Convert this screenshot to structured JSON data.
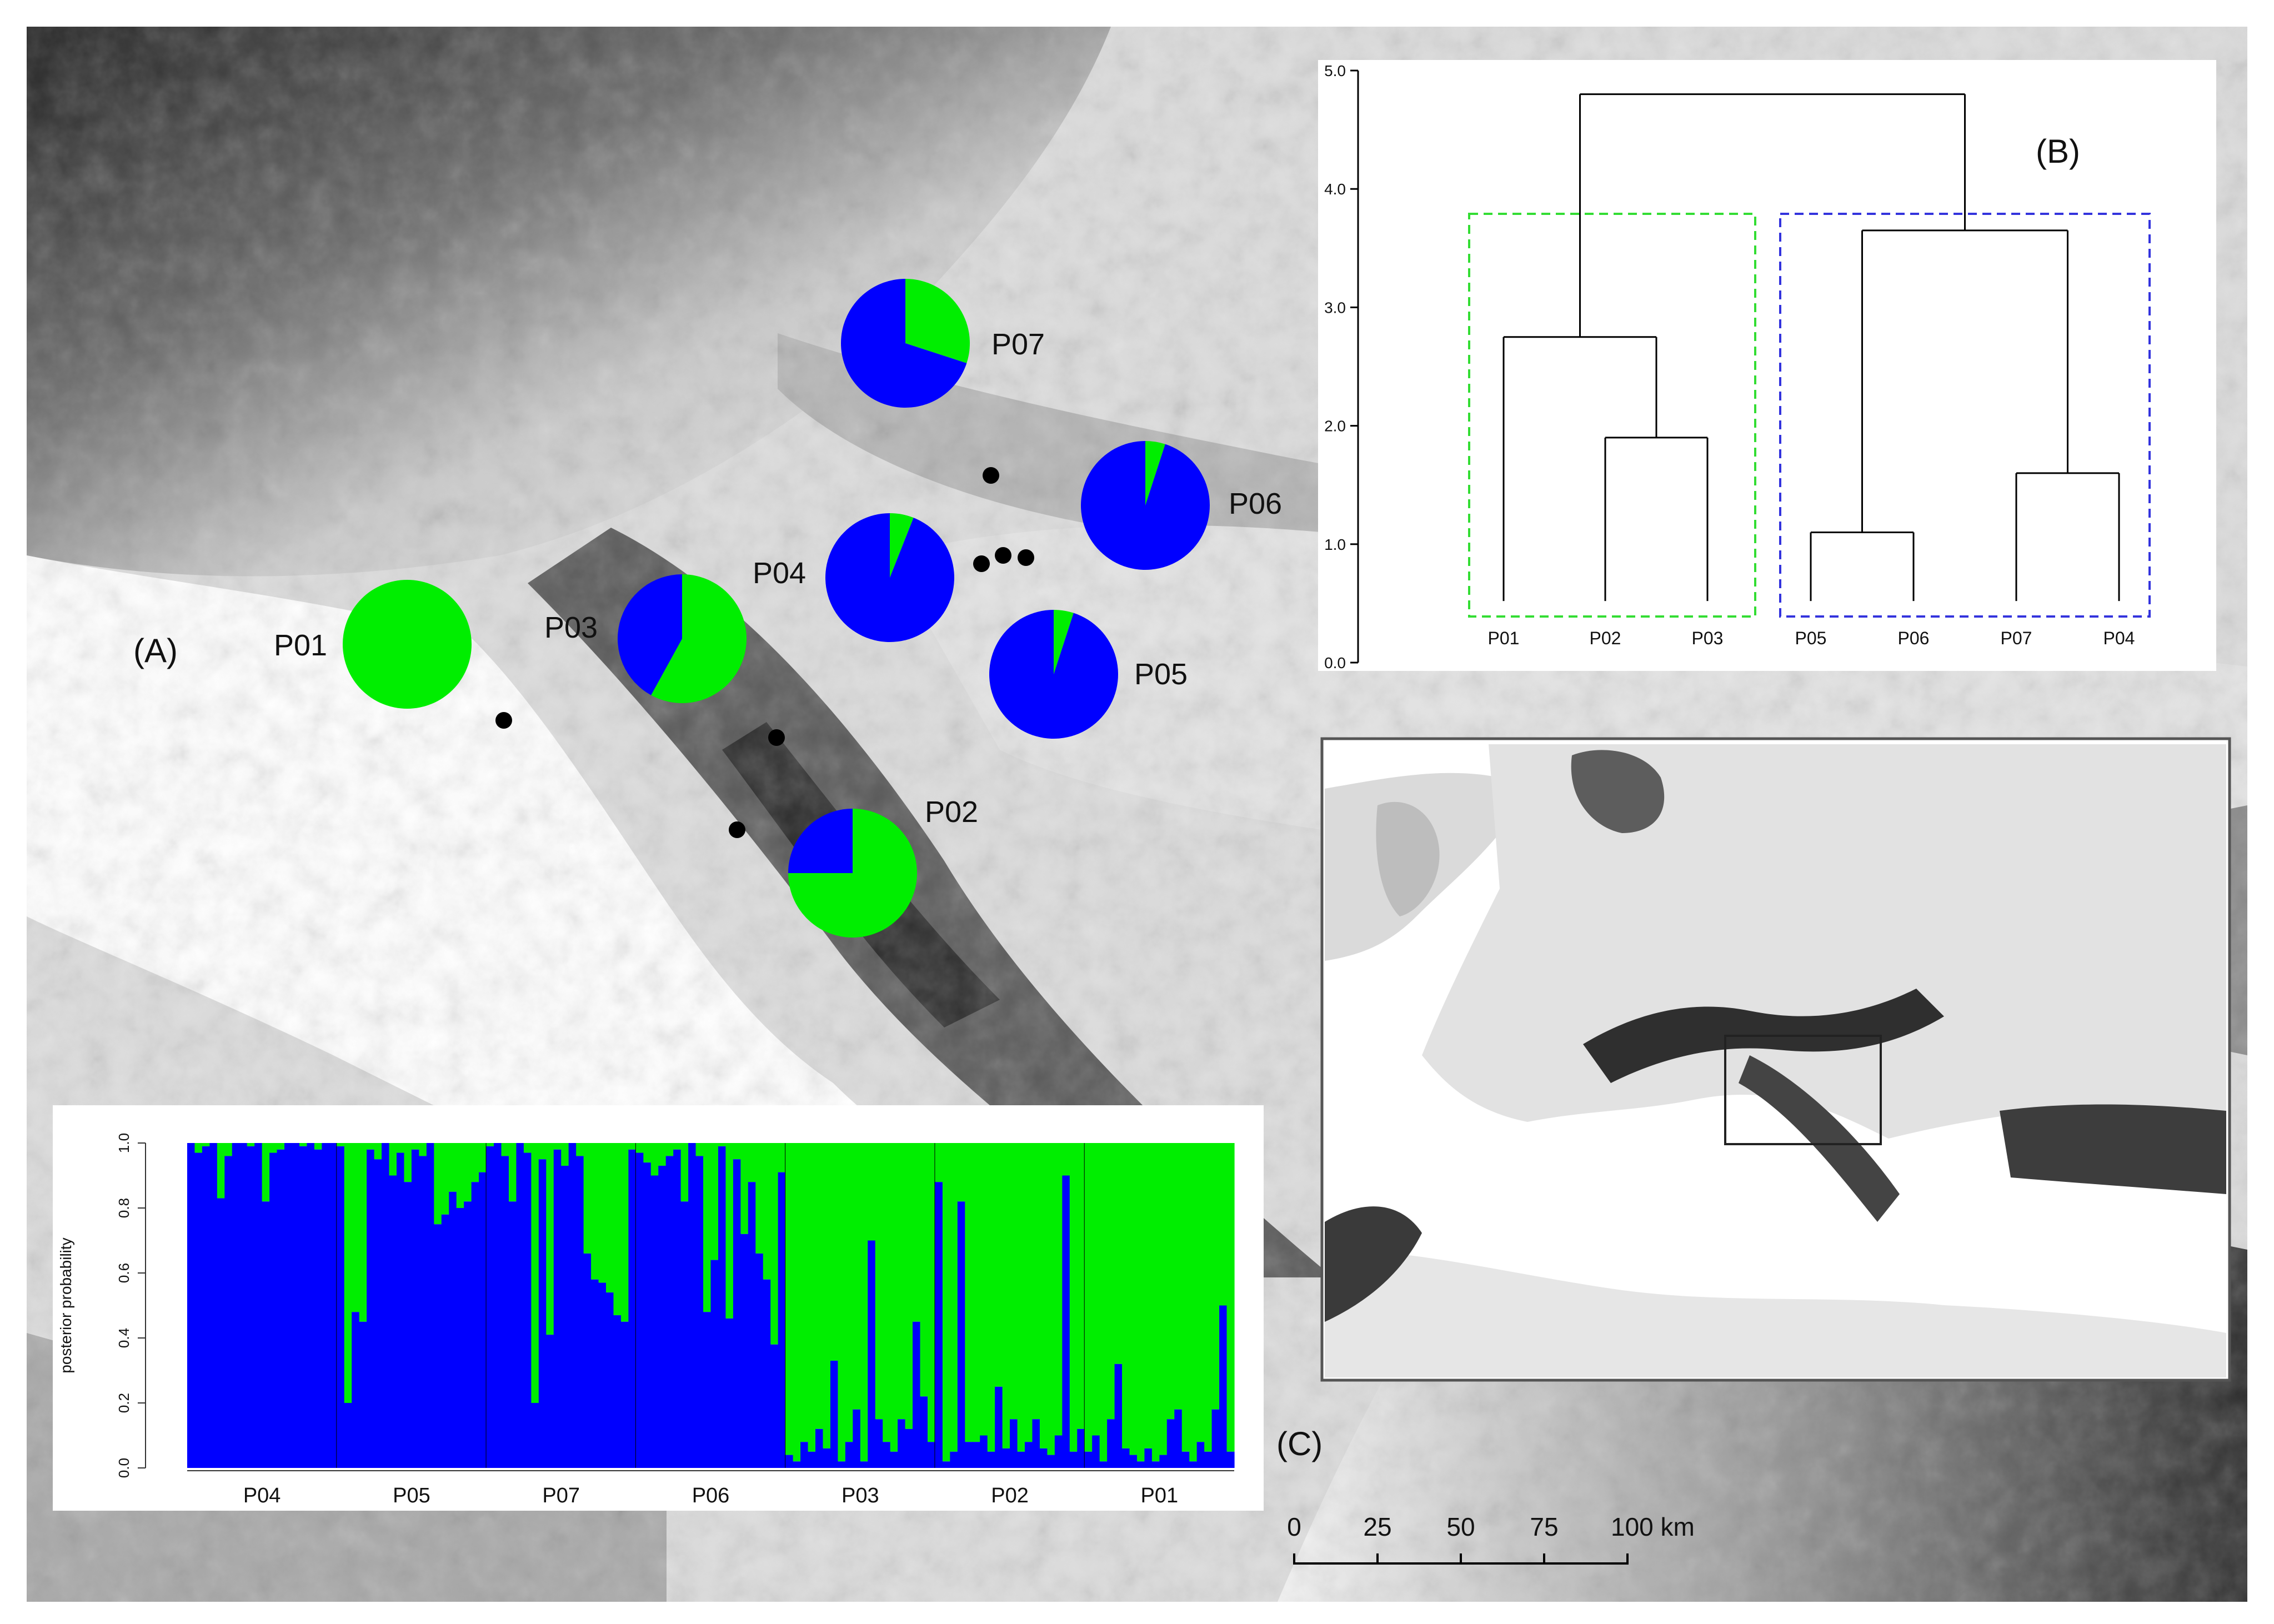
{
  "panel_labels": {
    "a": "(A)",
    "b": "(B)",
    "c": "(C)"
  },
  "populations": [
    {
      "id": "P01",
      "label": "P01",
      "blue": 0.0
    },
    {
      "id": "P02",
      "label": "P02",
      "blue": 0.25
    },
    {
      "id": "P03",
      "label": "P03",
      "blue": 0.42
    },
    {
      "id": "P04",
      "label": "P04",
      "blue": 0.94
    },
    {
      "id": "P05",
      "label": "P05",
      "blue": 0.95
    },
    {
      "id": "P06",
      "label": "P06",
      "blue": 0.95
    },
    {
      "id": "P07",
      "label": "P07",
      "blue": 0.7
    }
  ],
  "colors": {
    "cluster_blue": "#0000ff",
    "cluster_green": "#00ee00",
    "dendro_green_box": "#33dd33",
    "dendro_blue_box": "#3333dd"
  },
  "dendrogram": {
    "y_ticks": [
      "0.0",
      "1.0",
      "2.0",
      "3.0",
      "4.0",
      "5.0"
    ],
    "ylim": [
      0,
      5
    ],
    "leaves": [
      "P01",
      "P02",
      "P03",
      "P05",
      "P06",
      "P07",
      "P04"
    ],
    "merge_heights": {
      "P05_P06": 1.1,
      "P07_P04": 1.6,
      "P02_P03": 1.9,
      "P01_grp": 2.75,
      "blue_grp": 3.65,
      "root": 4.8
    }
  },
  "structure": {
    "ylabel": "posterior probability",
    "y_ticks": [
      "0.0",
      "0.2",
      "0.4",
      "0.6",
      "0.8",
      "1.0"
    ],
    "groups": [
      {
        "label": "P04",
        "blue": [
          1,
          0.97,
          0.99,
          1,
          0.83,
          0.96,
          1,
          1,
          0.99,
          1,
          0.82,
          0.97,
          0.98,
          1,
          1,
          0.99,
          1,
          0.98,
          1,
          1
        ]
      },
      {
        "label": "P05",
        "blue": [
          0.99,
          0.2,
          0.48,
          0.45,
          0.98,
          0.95,
          1,
          0.9,
          0.97,
          0.88,
          0.98,
          0.96,
          1,
          0.75,
          0.78,
          0.85,
          0.8,
          0.82,
          0.88,
          0.91
        ]
      },
      {
        "label": "P07",
        "blue": [
          0.99,
          1,
          0.96,
          0.82,
          1,
          0.97,
          0.2,
          0.95,
          0.41,
          0.98,
          0.93,
          1,
          0.96,
          0.66,
          0.58,
          0.57,
          0.54,
          0.47,
          0.45,
          0.98
        ]
      },
      {
        "label": "P06",
        "blue": [
          0.97,
          0.94,
          0.9,
          0.93,
          0.96,
          0.98,
          0.82,
          1,
          0.96,
          0.48,
          0.64,
          0.99,
          0.46,
          0.95,
          0.72,
          0.88,
          0.66,
          0.58,
          0.38,
          0.91
        ]
      },
      {
        "label": "P03",
        "blue": [
          0.04,
          0.02,
          0.08,
          0.05,
          0.12,
          0.06,
          0.33,
          0.02,
          0.08,
          0.18,
          0.02,
          0.7,
          0.15,
          0.08,
          0.05,
          0.15,
          0.12,
          0.45,
          0.22,
          0.08
        ]
      },
      {
        "label": "P02",
        "blue": [
          0.88,
          0.02,
          0.05,
          0.82,
          0.08,
          0.08,
          0.1,
          0.05,
          0.25,
          0.06,
          0.15,
          0.05,
          0.08,
          0.15,
          0.06,
          0.04,
          0.1,
          0.9,
          0.05,
          0.12
        ]
      },
      {
        "label": "P01",
        "blue": [
          0.05,
          0.1,
          0.02,
          0.15,
          0.32,
          0.06,
          0.04,
          0.02,
          0.06,
          0.02,
          0.04,
          0.15,
          0.18,
          0.05,
          0.02,
          0.08,
          0.05,
          0.18,
          0.5,
          0.05
        ]
      }
    ]
  },
  "scale_bar": {
    "ticks": [
      "0",
      "25",
      "50",
      "75",
      "100 km"
    ]
  }
}
